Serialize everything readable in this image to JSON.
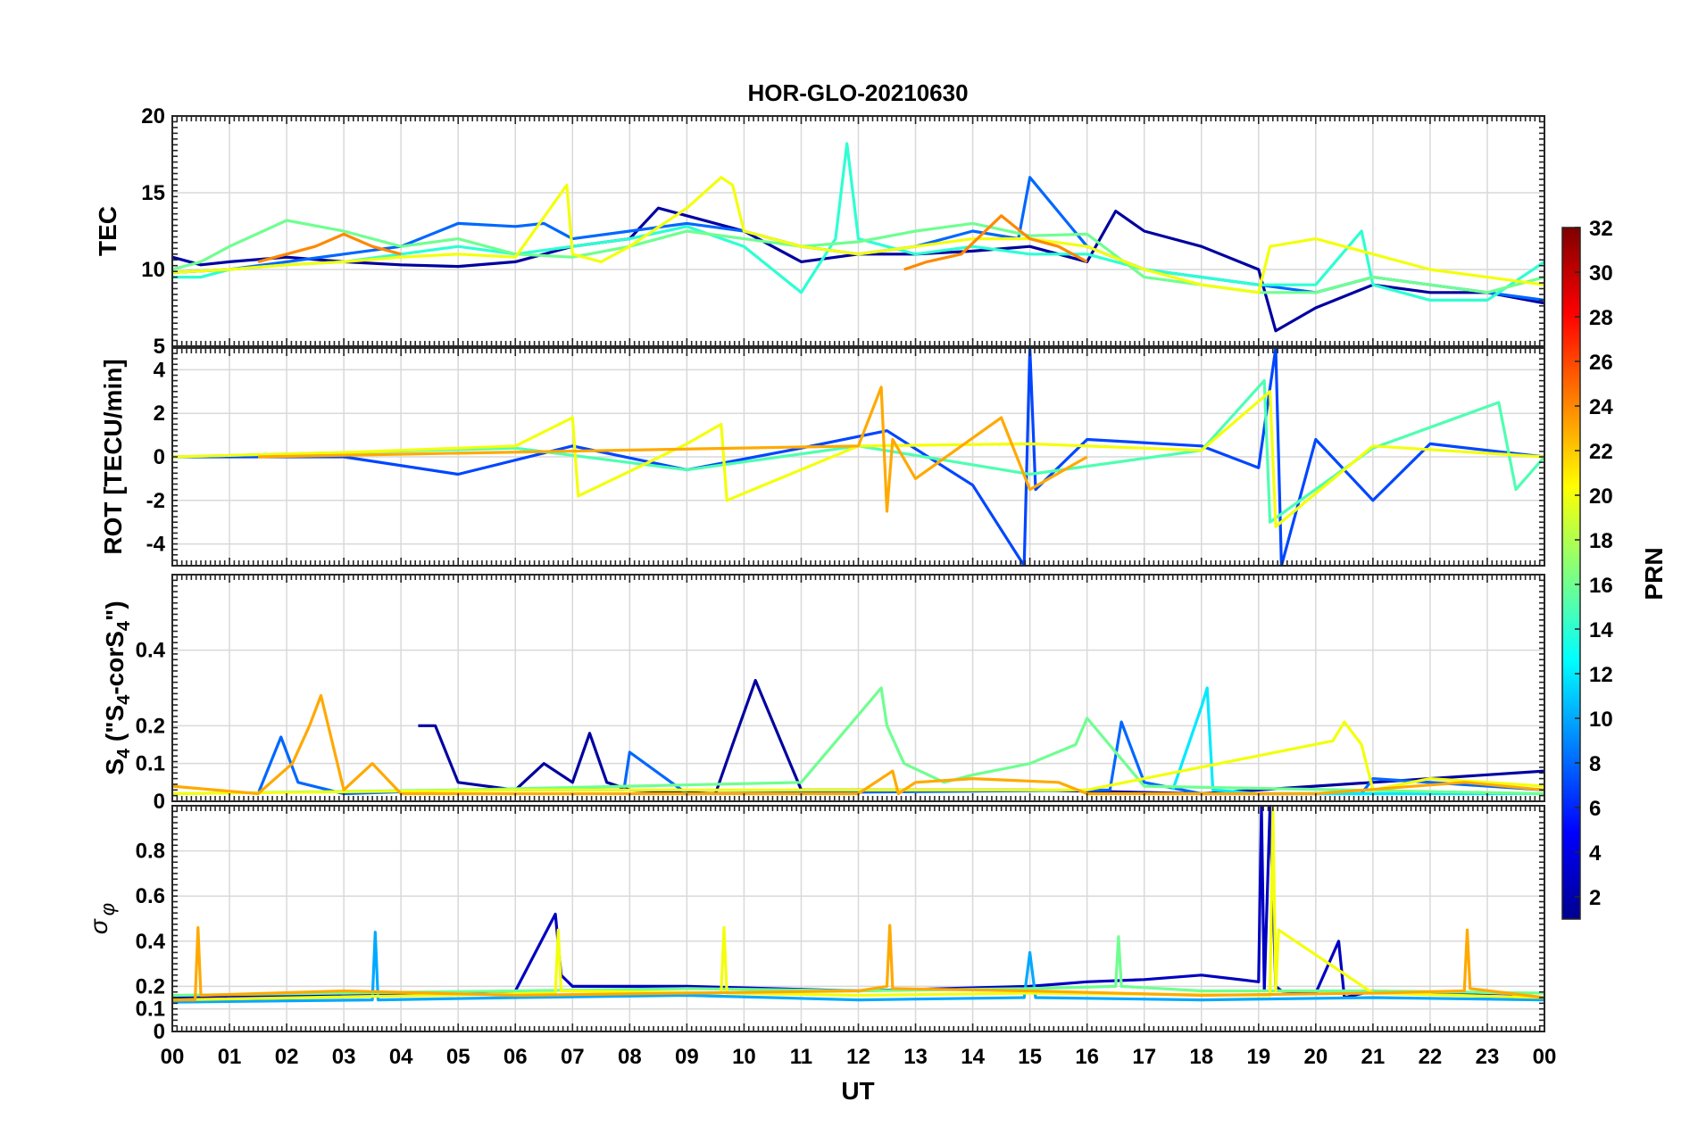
{
  "chart_data": {
    "type": "line",
    "title": "HOR-GLO-20210630",
    "xlabel": "UT",
    "x_ticks": [
      "00",
      "01",
      "02",
      "03",
      "04",
      "05",
      "06",
      "07",
      "08",
      "09",
      "10",
      "11",
      "12",
      "13",
      "14",
      "15",
      "16",
      "17",
      "18",
      "19",
      "20",
      "21",
      "22",
      "23",
      "00"
    ],
    "xlim": [
      0,
      24
    ],
    "grid": true,
    "colorbar": {
      "label": "PRN",
      "range": [
        1,
        32
      ],
      "ticks": [
        "2",
        "4",
        "6",
        "8",
        "10",
        "12",
        "14",
        "16",
        "18",
        "20",
        "22",
        "24",
        "26",
        "28",
        "30",
        "32"
      ],
      "colormap": "jet"
    },
    "panels": [
      {
        "ylabel": "TEC",
        "ylim": [
          5,
          20
        ],
        "y_ticks": [
          "5",
          "10",
          "15",
          "20"
        ],
        "series": [
          {
            "prn": 2,
            "x": [
              0,
              0.5,
              1,
              2,
              3,
              4,
              5,
              6,
              7,
              8,
              8.5,
              9,
              10,
              11,
              12,
              13,
              14,
              15,
              16,
              16.5,
              17,
              18,
              19,
              19.3,
              20,
              21,
              22,
              23,
              24
            ],
            "y": [
              10.8,
              10.3,
              10.5,
              10.8,
              10.5,
              10.3,
              10.2,
              10.5,
              11.5,
              12.0,
              14.0,
              13.5,
              12.5,
              10.5,
              11.0,
              11.0,
              11.2,
              11.5,
              10.5,
              13.8,
              12.5,
              11.5,
              10.0,
              6.0,
              7.5,
              9.0,
              8.5,
              8.5,
              7.8
            ]
          },
          {
            "prn": 8,
            "x": [
              0,
              1,
              2,
              3,
              4,
              5,
              6,
              6.5,
              7,
              8,
              9,
              10,
              11,
              12,
              13,
              14,
              14.8,
              15,
              16,
              17,
              18,
              19,
              20,
              21,
              22,
              23,
              24
            ],
            "y": [
              9.8,
              10.0,
              10.5,
              11.0,
              11.5,
              13.0,
              12.8,
              13.0,
              12.0,
              12.5,
              13.0,
              12.5,
              11.5,
              11.0,
              11.5,
              12.5,
              12.0,
              16.0,
              11.5,
              10.0,
              9.5,
              9.0,
              8.5,
              9.5,
              9.0,
              8.5,
              8.0
            ]
          },
          {
            "prn": 14,
            "x": [
              0,
              0.5,
              1,
              2,
              3,
              4,
              5,
              6,
              7,
              8,
              9,
              10,
              11,
              11.6,
              11.8,
              12,
              13,
              14,
              15,
              16,
              17,
              18,
              19,
              20,
              20.8,
              21,
              22,
              23,
              24
            ],
            "y": [
              9.5,
              9.5,
              10.0,
              10.3,
              10.5,
              11.0,
              11.5,
              11.0,
              11.5,
              12.0,
              12.8,
              11.5,
              8.5,
              12.0,
              18.2,
              12.0,
              11.0,
              11.5,
              11.0,
              11.0,
              10.0,
              9.5,
              9.0,
              9.0,
              12.5,
              9.0,
              8.0,
              8.0,
              10.5
            ]
          },
          {
            "prn": 16,
            "x": [
              0,
              0.5,
              1,
              2,
              3,
              4,
              5,
              6,
              7,
              8,
              9,
              10,
              11,
              12,
              13,
              14,
              15,
              16,
              17,
              18,
              19,
              20,
              21,
              22,
              23,
              24
            ],
            "y": [
              10.0,
              10.5,
              11.5,
              13.2,
              12.5,
              11.5,
              12.0,
              11.0,
              10.8,
              11.5,
              12.5,
              12.0,
              11.5,
              11.8,
              12.5,
              13.0,
              12.2,
              12.3,
              9.5,
              9.0,
              8.5,
              8.5,
              9.5,
              9.0,
              8.5,
              9.5
            ]
          },
          {
            "prn": 20,
            "x": [
              0,
              1,
              2,
              3,
              4,
              5,
              6,
              6.9,
              7,
              7.5,
              8,
              9,
              9.6,
              9.8,
              10,
              11,
              12,
              13,
              14,
              15,
              16,
              17,
              18,
              19,
              19.2,
              20,
              21,
              22,
              23,
              24
            ],
            "y": [
              9.8,
              10.0,
              10.3,
              10.5,
              10.8,
              11.0,
              10.8,
              15.5,
              11.0,
              10.5,
              11.5,
              14.0,
              16.0,
              15.5,
              12.5,
              11.5,
              11.0,
              11.5,
              12.0,
              12.0,
              11.5,
              10.0,
              9.0,
              8.5,
              11.5,
              12.0,
              11.0,
              10.0,
              9.5,
              9.0
            ]
          },
          {
            "prn": 24,
            "x": [
              1.5,
              2,
              2.5,
              3,
              3.5,
              4
            ],
            "y": [
              10.5,
              11.0,
              11.5,
              12.3,
              11.5,
              11.0
            ]
          },
          {
            "prn": 24,
            "x": [
              12.8,
              13.2,
              13.8,
              14.5,
              15,
              15.5,
              16
            ],
            "y": [
              10.0,
              10.5,
              11.0,
              13.5,
              12.0,
              11.5,
              10.5
            ]
          }
        ]
      },
      {
        "ylabel": "ROT [TECU/min]",
        "ylim": [
          -5,
          5
        ],
        "y_ticks": [
          "-4",
          "-2",
          "0",
          "2",
          "4"
        ],
        "series": [
          {
            "prn": 7,
            "x": [
              0,
              3,
              5,
              7,
              9,
              11,
              12.5,
              14,
              14.9,
              15,
              15.1,
              16,
              18,
              19,
              19.3,
              19.4,
              20,
              21,
              22,
              23,
              24
            ],
            "y": [
              0,
              0,
              -0.8,
              0.5,
              -0.6,
              0.4,
              1.2,
              -1.3,
              -5.0,
              5.0,
              -1.5,
              0.8,
              0.5,
              -0.5,
              5.0,
              -5.0,
              0.8,
              -2.0,
              0.6,
              0.3,
              0
            ]
          },
          {
            "prn": 15,
            "x": [
              0,
              3,
              6,
              9,
              12,
              15,
              18,
              19.1,
              19.2,
              21,
              23.2,
              23.5,
              24
            ],
            "y": [
              0,
              0.2,
              0.4,
              -0.6,
              0.5,
              -0.8,
              0.3,
              3.5,
              -3.0,
              0.4,
              2.5,
              -1.5,
              0
            ]
          },
          {
            "prn": 20,
            "x": [
              0,
              3,
              6,
              7,
              7.1,
              9,
              9.6,
              9.7,
              12,
              15,
              18,
              19.2,
              19.3,
              21,
              24
            ],
            "y": [
              0,
              0.2,
              0.5,
              1.8,
              -1.8,
              0.6,
              1.5,
              -2.0,
              0.5,
              0.6,
              0.3,
              3.0,
              -3.2,
              0.5,
              0
            ]
          },
          {
            "prn": 23,
            "x": [
              1.5,
              3.5,
              12,
              12.4,
              12.5,
              12.6,
              13,
              14.5,
              15,
              16
            ],
            "y": [
              0,
              0.1,
              0.5,
              3.2,
              -2.5,
              0.8,
              -1.0,
              1.8,
              -1.5,
              0
            ]
          }
        ]
      },
      {
        "ylabel": "S4 (\"S4-corS4\")",
        "ylabel_parts": [
          "S",
          "4",
          " (\"S",
          "4",
          "-corS",
          "4",
          "\")"
        ],
        "ylim": [
          0,
          0.6
        ],
        "y_ticks": [
          "0",
          "0.1",
          "0.2",
          "0.4"
        ],
        "series": [
          {
            "prn": 2,
            "x": [
              4.3,
              4.6,
              5,
              6,
              6.5,
              7,
              7.3,
              7.6,
              8,
              9.5,
              9.8,
              10.2,
              11,
              14,
              15,
              18,
              21,
              24
            ],
            "y": [
              0.2,
              0.2,
              0.05,
              0.03,
              0.1,
              0.05,
              0.18,
              0.05,
              0.03,
              0.02,
              0.15,
              0.32,
              0.03,
              0.03,
              0.03,
              0.02,
              0.05,
              0.08
            ]
          },
          {
            "prn": 8,
            "x": [
              1.5,
              1.9,
              2.2,
              3,
              5,
              7.9,
              8,
              9,
              16.4,
              16.6,
              17,
              18,
              20.8,
              21,
              24
            ],
            "y": [
              0.02,
              0.17,
              0.05,
              0.02,
              0.03,
              0.03,
              0.13,
              0.02,
              0.03,
              0.21,
              0.05,
              0.02,
              0.02,
              0.06,
              0.03
            ]
          },
          {
            "prn": 12,
            "x": [
              17.5,
              18,
              18.1,
              18.2,
              19,
              24
            ],
            "y": [
              0.03,
              0.25,
              0.3,
              0.03,
              0.02,
              0.02
            ]
          },
          {
            "prn": 16,
            "x": [
              0,
              5,
              11,
              12.4,
              12.5,
              12.8,
              13.5,
              14,
              15,
              15.8,
              16,
              17,
              24
            ],
            "y": [
              0.02,
              0.03,
              0.05,
              0.3,
              0.2,
              0.1,
              0.05,
              0.07,
              0.1,
              0.15,
              0.22,
              0.04,
              0.02
            ]
          },
          {
            "prn": 20,
            "x": [
              0,
              6,
              11,
              16,
              20.3,
              20.5,
              20.8,
              21,
              22,
              23,
              24
            ],
            "y": [
              0.02,
              0.03,
              0.03,
              0.03,
              0.16,
              0.21,
              0.15,
              0.03,
              0.06,
              0.05,
              0.04
            ]
          },
          {
            "prn": 23,
            "x": [
              0,
              1.5,
              2.1,
              2.4,
              2.6,
              3,
              3.5,
              4,
              12,
              12.6,
              12.7,
              13,
              14,
              15.5,
              16,
              20,
              22.6,
              24
            ],
            "y": [
              0.04,
              0.02,
              0.1,
              0.2,
              0.28,
              0.03,
              0.1,
              0.02,
              0.02,
              0.08,
              0.02,
              0.05,
              0.06,
              0.05,
              0.02,
              0.02,
              0.05,
              0.03
            ]
          }
        ]
      },
      {
        "ylabel": "σ φ",
        "ylabel_parts": [
          "σ",
          "φ"
        ],
        "ylim": [
          0,
          1
        ],
        "y_ticks": [
          "0",
          "0.1",
          "0.2",
          "0.4",
          "0.6",
          "0.8"
        ],
        "series": [
          {
            "prn": 3,
            "x": [
              0,
              3,
              6,
              6.7,
              6.8,
              7,
              9,
              12,
              15,
              16,
              17,
              18,
              19,
              19.05,
              19.1,
              19.2,
              19.3,
              19.4,
              20,
              20.4,
              20.5,
              21,
              24
            ],
            "y": [
              0.15,
              0.16,
              0.18,
              0.52,
              0.25,
              0.2,
              0.2,
              0.18,
              0.2,
              0.22,
              0.23,
              0.25,
              0.22,
              1.0,
              0.18,
              1.0,
              0.2,
              0.18,
              0.17,
              0.4,
              0.15,
              0.18,
              0.15
            ]
          },
          {
            "prn": 10,
            "x": [
              0,
              3.5,
              3.55,
              3.6,
              6,
              9,
              12,
              14.9,
              15,
              15.1,
              18,
              21,
              24
            ],
            "y": [
              0.13,
              0.14,
              0.44,
              0.14,
              0.15,
              0.16,
              0.14,
              0.15,
              0.35,
              0.15,
              0.14,
              0.15,
              0.14
            ]
          },
          {
            "prn": 16,
            "x": [
              0,
              3,
              6,
              9,
              12,
              15,
              16.5,
              16.55,
              16.6,
              18,
              21,
              24
            ],
            "y": [
              0.16,
              0.17,
              0.18,
              0.19,
              0.18,
              0.19,
              0.2,
              0.42,
              0.2,
              0.18,
              0.18,
              0.17
            ]
          },
          {
            "prn": 20,
            "x": [
              0,
              6.7,
              6.75,
              6.8,
              9.6,
              9.65,
              9.7,
              12,
              15,
              19.2,
              19.25,
              19.3,
              19.35,
              21,
              24
            ],
            "y": [
              0.14,
              0.17,
              0.45,
              0.18,
              0.17,
              0.46,
              0.17,
              0.16,
              0.17,
              0.16,
              1.0,
              0.18,
              0.45,
              0.17,
              0.15
            ]
          },
          {
            "prn": 23,
            "x": [
              0,
              0.4,
              0.45,
              0.5,
              3,
              6,
              9,
              12,
              12.5,
              12.55,
              12.6,
              15,
              18,
              21,
              22.6,
              22.65,
              22.7,
              24
            ],
            "y": [
              0.14,
              0.14,
              0.46,
              0.16,
              0.18,
              0.16,
              0.17,
              0.18,
              0.2,
              0.47,
              0.19,
              0.18,
              0.16,
              0.17,
              0.18,
              0.45,
              0.19,
              0.15
            ]
          }
        ]
      }
    ]
  }
}
